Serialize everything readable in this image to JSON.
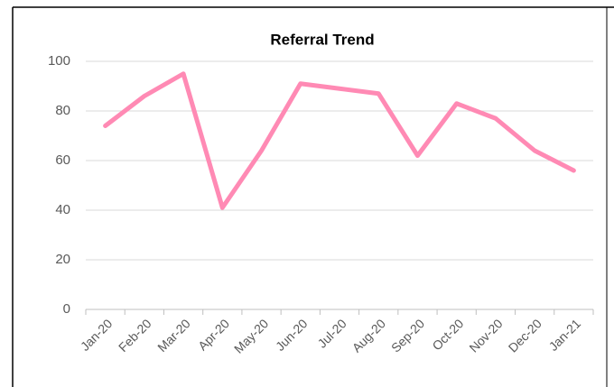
{
  "chart_data": {
    "type": "line",
    "title": "Referral Trend",
    "categories": [
      "Jan-20",
      "Feb-20",
      "Mar-20",
      "Apr-20",
      "May-20",
      "Jun-20",
      "Jul-20",
      "Aug-20",
      "Sep-20",
      "Oct-20",
      "Nov-20",
      "Dec-20",
      "Jan-21"
    ],
    "values": [
      74,
      86,
      95,
      41,
      64,
      91,
      89,
      87,
      62,
      83,
      77,
      64,
      56
    ],
    "color": "#ff8ab4",
    "ylim": [
      0,
      100
    ],
    "yticks": [
      0,
      20,
      40,
      60,
      80,
      100
    ],
    "grid": true
  }
}
